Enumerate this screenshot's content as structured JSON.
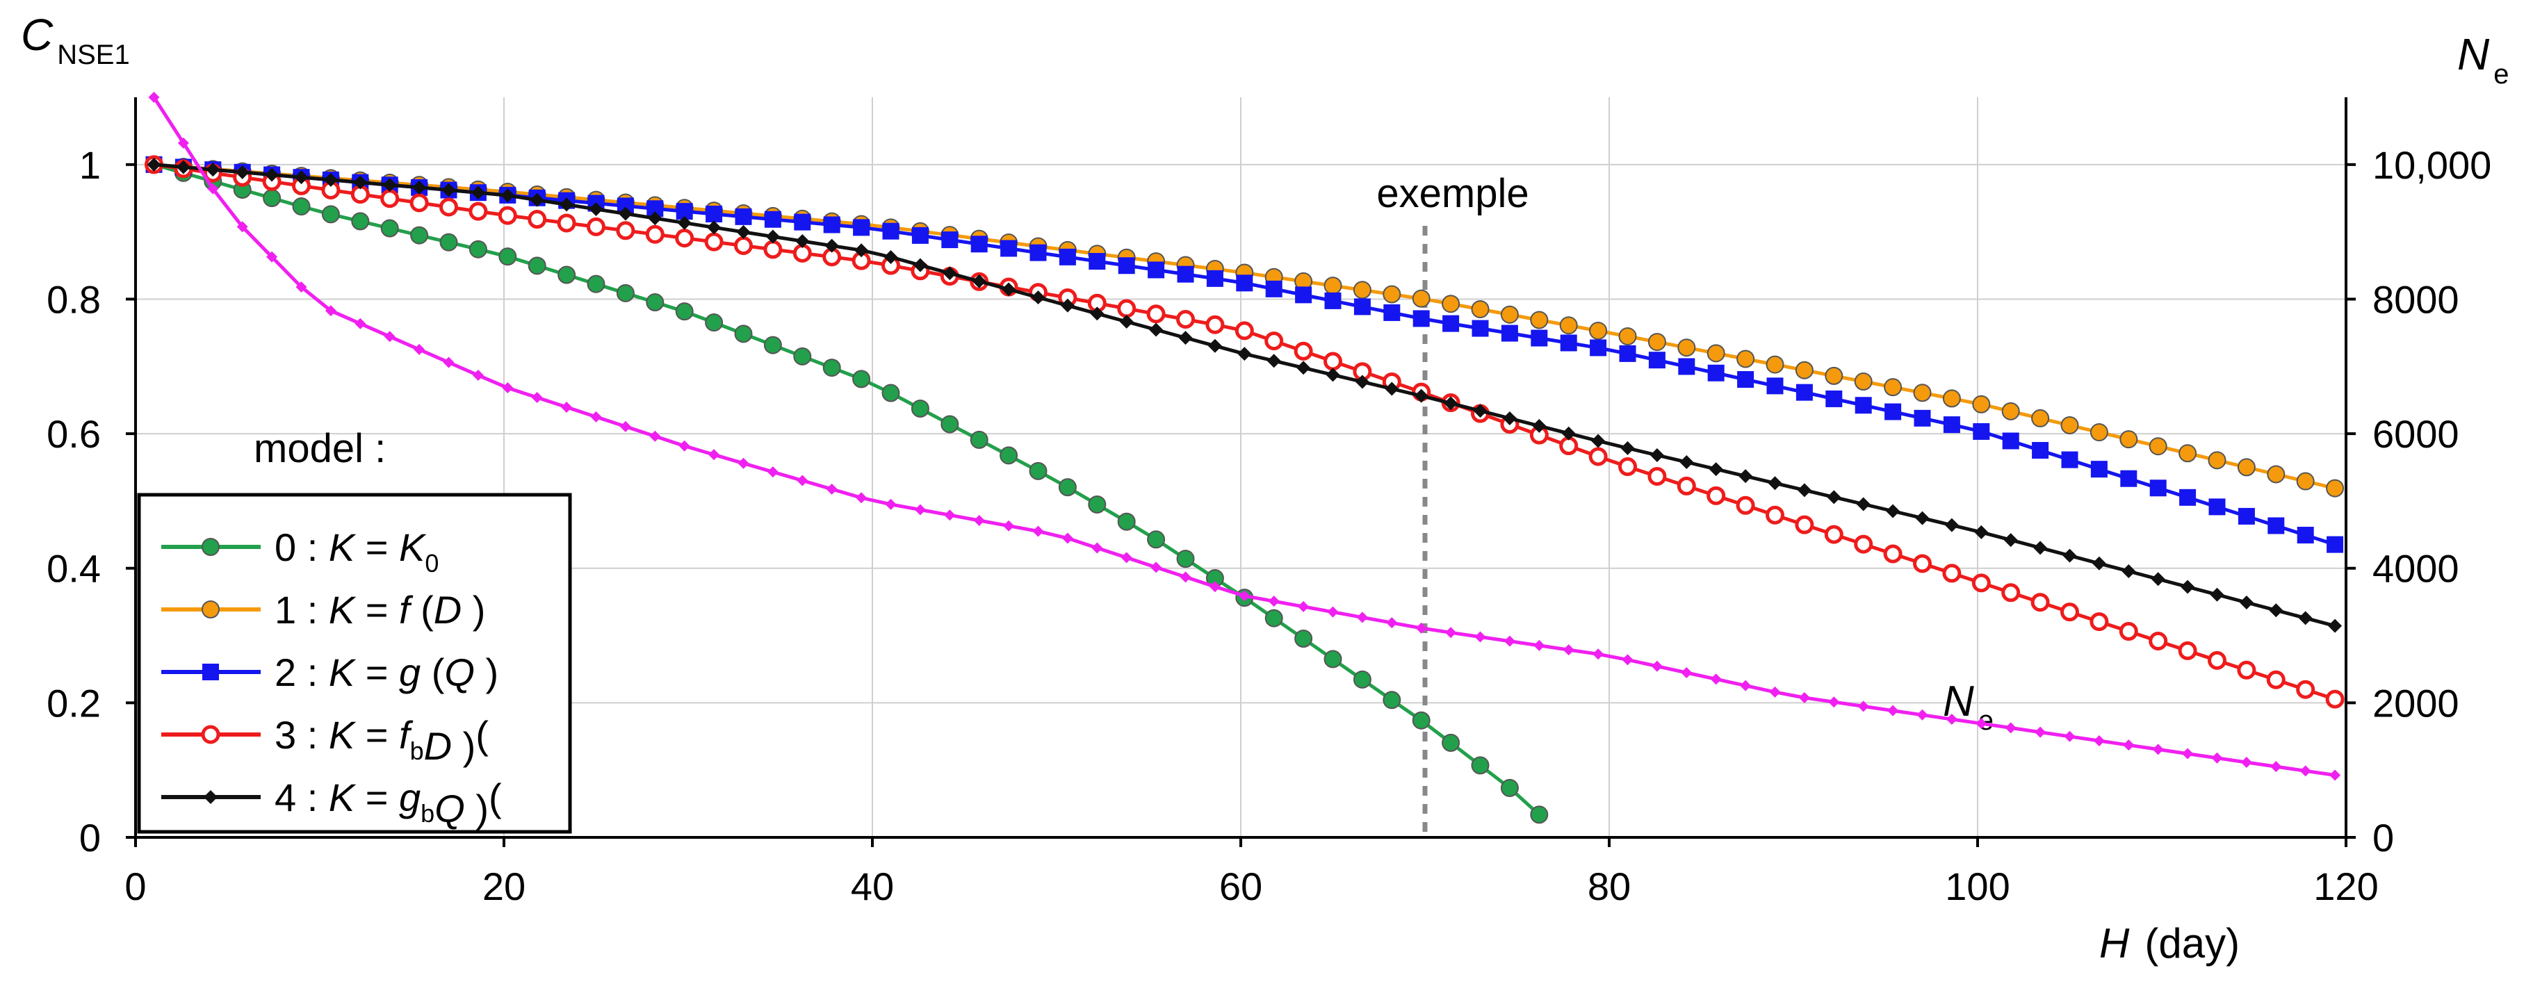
{
  "chart_data": {
    "type": "line",
    "xlabel": {
      "var": "H",
      "unit": "(day)"
    },
    "ylabel_left": {
      "main": "C",
      "sub": "NSE1"
    },
    "ylabel_right": {
      "main": "N",
      "sub": "e"
    },
    "xlim": [
      0,
      120
    ],
    "ylim_left": [
      0,
      1.1
    ],
    "ylim_right": [
      0,
      11000
    ],
    "x_ticks": [
      "0",
      "20",
      "40",
      "60",
      "80",
      "100",
      "120"
    ],
    "y_ticks_left": [
      "0",
      "0.2",
      "0.4",
      "0.6",
      "0.8",
      "1"
    ],
    "y_ticks_right": [
      "0",
      "2000",
      "4000",
      "6000",
      "8000",
      "10,000"
    ],
    "grid": true,
    "annotation": {
      "label": "exemple",
      "x": 70
    },
    "ne_label": {
      "main": "N",
      "sub": "e"
    },
    "legend": {
      "title": "model  :",
      "placement": "left-lower",
      "entries": [
        {
          "id": "0",
          "label": "0 : K = K",
          "sub": "0"
        },
        {
          "id": "1",
          "label": "1 : K = f (D )",
          "sub": ""
        },
        {
          "id": "2",
          "label": "2 : K = g (Q )",
          "sub": ""
        },
        {
          "id": "3",
          "label": "3 : K = f",
          "sub": "b",
          "tail": "(D )"
        },
        {
          "id": "4",
          "label": "4 : K = g",
          "sub": "b",
          "tail": "(Q )"
        }
      ]
    },
    "series": [
      {
        "id": "0",
        "color": "#22A04B",
        "marker": "circle-filled",
        "points": [
          [
            1,
            1.0
          ],
          [
            10,
            0.93
          ],
          [
            20,
            0.865
          ],
          [
            30,
            0.78
          ],
          [
            40,
            0.675
          ],
          [
            50,
            0.53
          ],
          [
            55,
            0.45
          ],
          [
            60,
            0.36
          ],
          [
            65,
            0.265
          ],
          [
            70,
            0.17
          ],
          [
            75,
            0.065
          ],
          [
            77.5,
            0.0
          ]
        ]
      },
      {
        "id": "1",
        "color": "#F59A0C",
        "marker": "circle-filled",
        "points": [
          [
            1,
            1.0
          ],
          [
            20,
            0.96
          ],
          [
            40,
            0.91
          ],
          [
            60,
            0.84
          ],
          [
            70,
            0.8
          ],
          [
            80,
            0.75
          ],
          [
            100,
            0.645
          ],
          [
            120,
            0.515
          ]
        ]
      },
      {
        "id": "2",
        "color": "#1515F0",
        "marker": "square",
        "points": [
          [
            1,
            1.0
          ],
          [
            20,
            0.955
          ],
          [
            40,
            0.905
          ],
          [
            60,
            0.825
          ],
          [
            70,
            0.77
          ],
          [
            80,
            0.725
          ],
          [
            100,
            0.605
          ],
          [
            120,
            0.43
          ]
        ]
      },
      {
        "id": "3",
        "color": "#EE1C1C",
        "marker": "circle-open",
        "points": [
          [
            1,
            1.0
          ],
          [
            20,
            0.925
          ],
          [
            40,
            0.855
          ],
          [
            60,
            0.755
          ],
          [
            70,
            0.66
          ],
          [
            80,
            0.56
          ],
          [
            100,
            0.38
          ],
          [
            120,
            0.2
          ]
        ]
      },
      {
        "id": "4",
        "color": "#111111",
        "marker": "diamond",
        "points": [
          [
            1,
            1.0
          ],
          [
            20,
            0.955
          ],
          [
            40,
            0.87
          ],
          [
            60,
            0.72
          ],
          [
            70,
            0.655
          ],
          [
            80,
            0.585
          ],
          [
            100,
            0.455
          ],
          [
            120,
            0.31
          ]
        ]
      },
      {
        "id": "Ne",
        "color": "#F020F0",
        "marker": "diamond-small",
        "axis": "right",
        "points": [
          [
            1,
            11000
          ],
          [
            5,
            9300
          ],
          [
            10,
            7900
          ],
          [
            20,
            6700
          ],
          [
            30,
            5800
          ],
          [
            40,
            5000
          ],
          [
            50,
            4500
          ],
          [
            60,
            3600
          ],
          [
            70,
            3100
          ],
          [
            80,
            2700
          ],
          [
            90,
            2100
          ],
          [
            100,
            1700
          ],
          [
            110,
            1300
          ],
          [
            120,
            900
          ]
        ]
      }
    ]
  }
}
